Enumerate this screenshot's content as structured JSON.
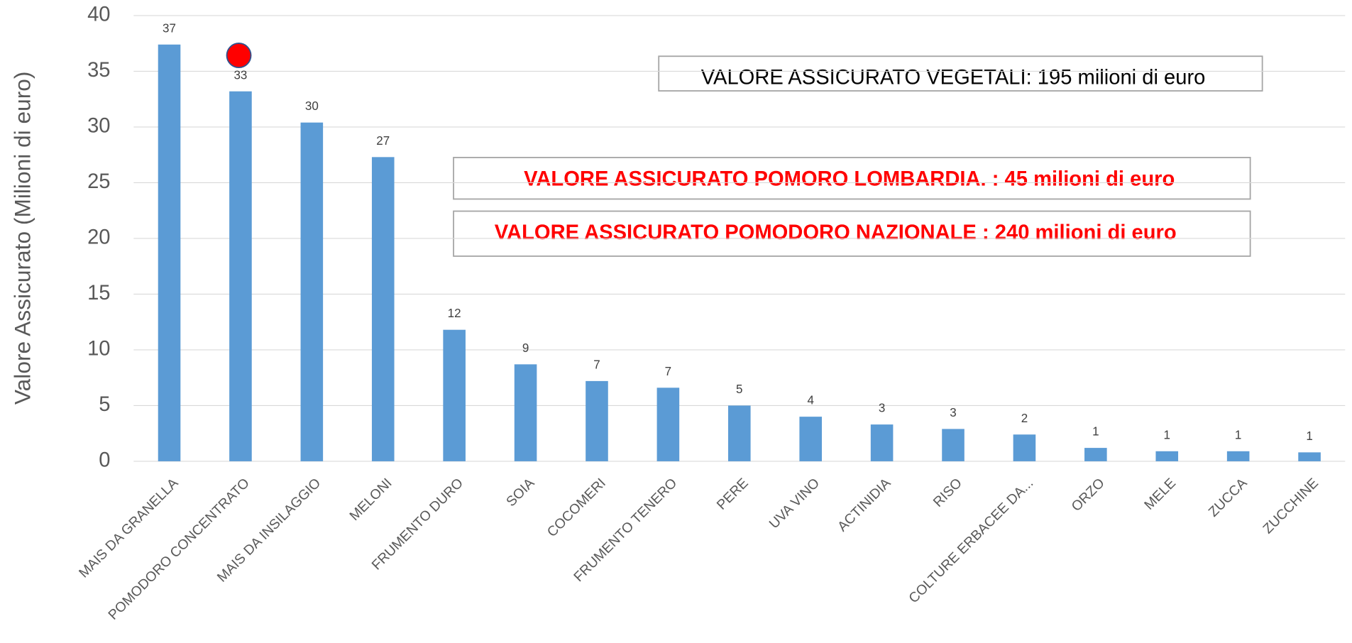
{
  "chart_data": {
    "type": "bar",
    "y_label": "Valore Assicurato (Milioni di euro)",
    "categories": [
      "MAIS DA GRANELLA",
      "POMODORO CONCENTRATO",
      "MAIS DA INSILAGGIO",
      "MELONI",
      "FRUMENTO DURO",
      "SOIA",
      "COCOMERI",
      "FRUMENTO TENERO",
      "PERE",
      "UVA VINO",
      "ACTINIDIA",
      "RISO",
      "COLTURE ERBACEE DA...",
      "ORZO",
      "MELE",
      "ZUCCA",
      "ZUCCHINE"
    ],
    "values": [
      37.4,
      33.2,
      30.4,
      27.3,
      11.8,
      8.7,
      7.2,
      6.6,
      5.0,
      4.0,
      3.3,
      2.9,
      2.4,
      1.2,
      0.9,
      0.9,
      0.8
    ],
    "value_labels": [
      "37",
      "33",
      "30",
      "27",
      "12",
      "9",
      "7",
      "7",
      "5",
      "4",
      "3",
      "3",
      "2",
      "1",
      "1",
      "1",
      "1"
    ],
    "color": "#5b9bd5",
    "ylim": [
      0,
      40
    ],
    "yticks": [
      0,
      5,
      10,
      15,
      20,
      25,
      30,
      35,
      40
    ],
    "grid": true,
    "annotations": [
      "VALORE ASSICURATO VEGETALI: 195 milioni di euro",
      "VALORE ASSICURATO POMORO LOMBARDIA. : 45 milioni di euro",
      "VALORE ASSICURATO POMODORO NAZIONALE : 240 milioni di euro"
    ]
  }
}
